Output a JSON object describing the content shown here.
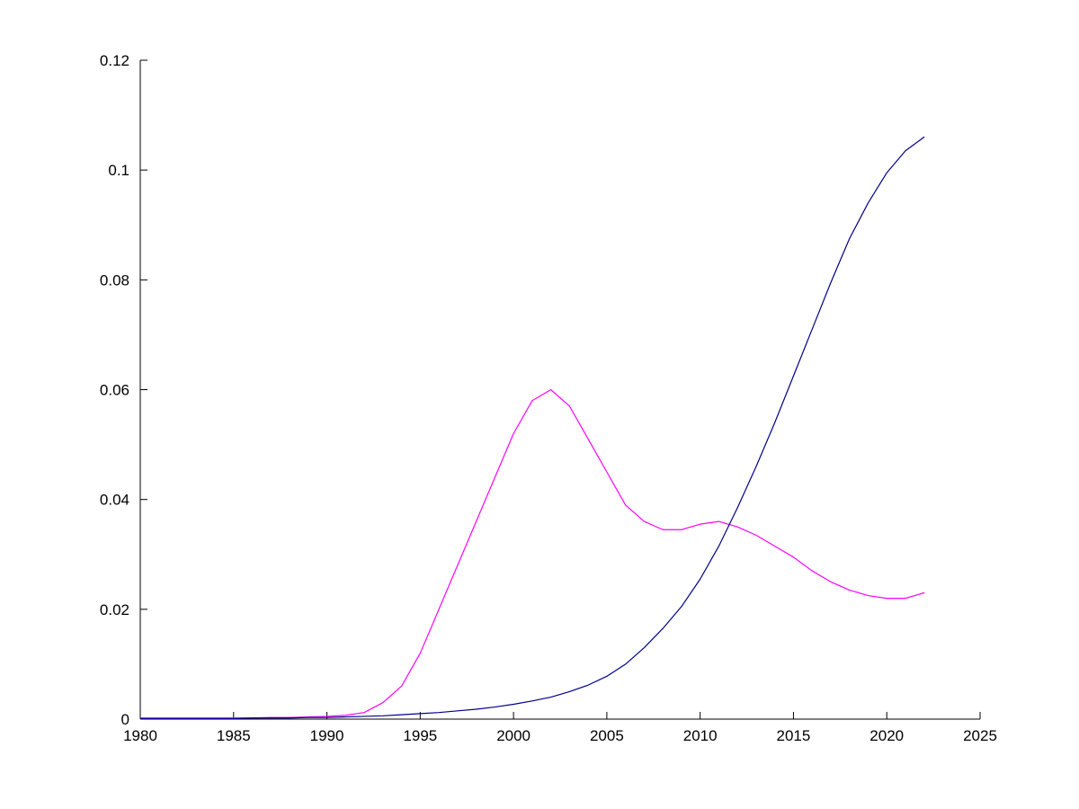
{
  "chart_data": {
    "type": "line",
    "title": "",
    "xlabel": "",
    "ylabel": "",
    "xlim": [
      1980,
      2025
    ],
    "ylim": [
      0,
      0.12
    ],
    "grid": false,
    "legend": "none",
    "axis_color": "#000000",
    "background_color": "#ffffff",
    "xticks": {
      "values": [
        1980,
        1985,
        1990,
        1995,
        2000,
        2005,
        2010,
        2015,
        2020,
        2025
      ],
      "labels": [
        "1980",
        "1985",
        "1990",
        "1995",
        "2000",
        "2005",
        "2010",
        "2015",
        "2020",
        "2025"
      ]
    },
    "yticks": {
      "values": [
        0,
        0.02,
        0.04,
        0.06,
        0.08,
        0.1,
        0.12
      ],
      "labels": [
        "0",
        "0.02",
        "0.04",
        "0.06",
        "0.08",
        "0.1",
        "0.12"
      ]
    },
    "x": [
      1980,
      1981,
      1982,
      1983,
      1984,
      1985,
      1986,
      1987,
      1988,
      1989,
      1990,
      1991,
      1992,
      1993,
      1994,
      1995,
      1996,
      1997,
      1998,
      1999,
      2000,
      2001,
      2002,
      2003,
      2004,
      2005,
      2006,
      2007,
      2008,
      2009,
      2010,
      2011,
      2012,
      2013,
      2014,
      2015,
      2016,
      2017,
      2018,
      2019,
      2020,
      2021,
      2022
    ],
    "series": [
      {
        "name": "magenta-line",
        "color": "#ff00ff",
        "values": [
          0.0002,
          0.0002,
          0.0002,
          0.0002,
          0.0002,
          0.0002,
          0.0002,
          0.0003,
          0.0003,
          0.0004,
          0.0005,
          0.0007,
          0.0012,
          0.003,
          0.006,
          0.012,
          0.02,
          0.028,
          0.036,
          0.044,
          0.052,
          0.058,
          0.06,
          0.057,
          0.051,
          0.045,
          0.039,
          0.036,
          0.0345,
          0.0345,
          0.0355,
          0.036,
          0.035,
          0.0335,
          0.0315,
          0.0295,
          0.027,
          0.025,
          0.0235,
          0.0225,
          0.022,
          0.022,
          0.023
        ]
      },
      {
        "name": "dark-blue-line",
        "color": "#00008b",
        "values": [
          0.0001,
          0.0001,
          0.0001,
          0.0001,
          0.0001,
          0.0001,
          0.0002,
          0.0002,
          0.0002,
          0.0003,
          0.0003,
          0.0004,
          0.0005,
          0.0006,
          0.0008,
          0.001,
          0.0012,
          0.0015,
          0.0018,
          0.0022,
          0.0027,
          0.0033,
          0.004,
          0.005,
          0.0062,
          0.0078,
          0.01,
          0.013,
          0.0165,
          0.0205,
          0.0255,
          0.0315,
          0.0385,
          0.046,
          0.054,
          0.0625,
          0.071,
          0.0795,
          0.0875,
          0.094,
          0.0995,
          0.1035,
          0.106
        ]
      }
    ]
  }
}
